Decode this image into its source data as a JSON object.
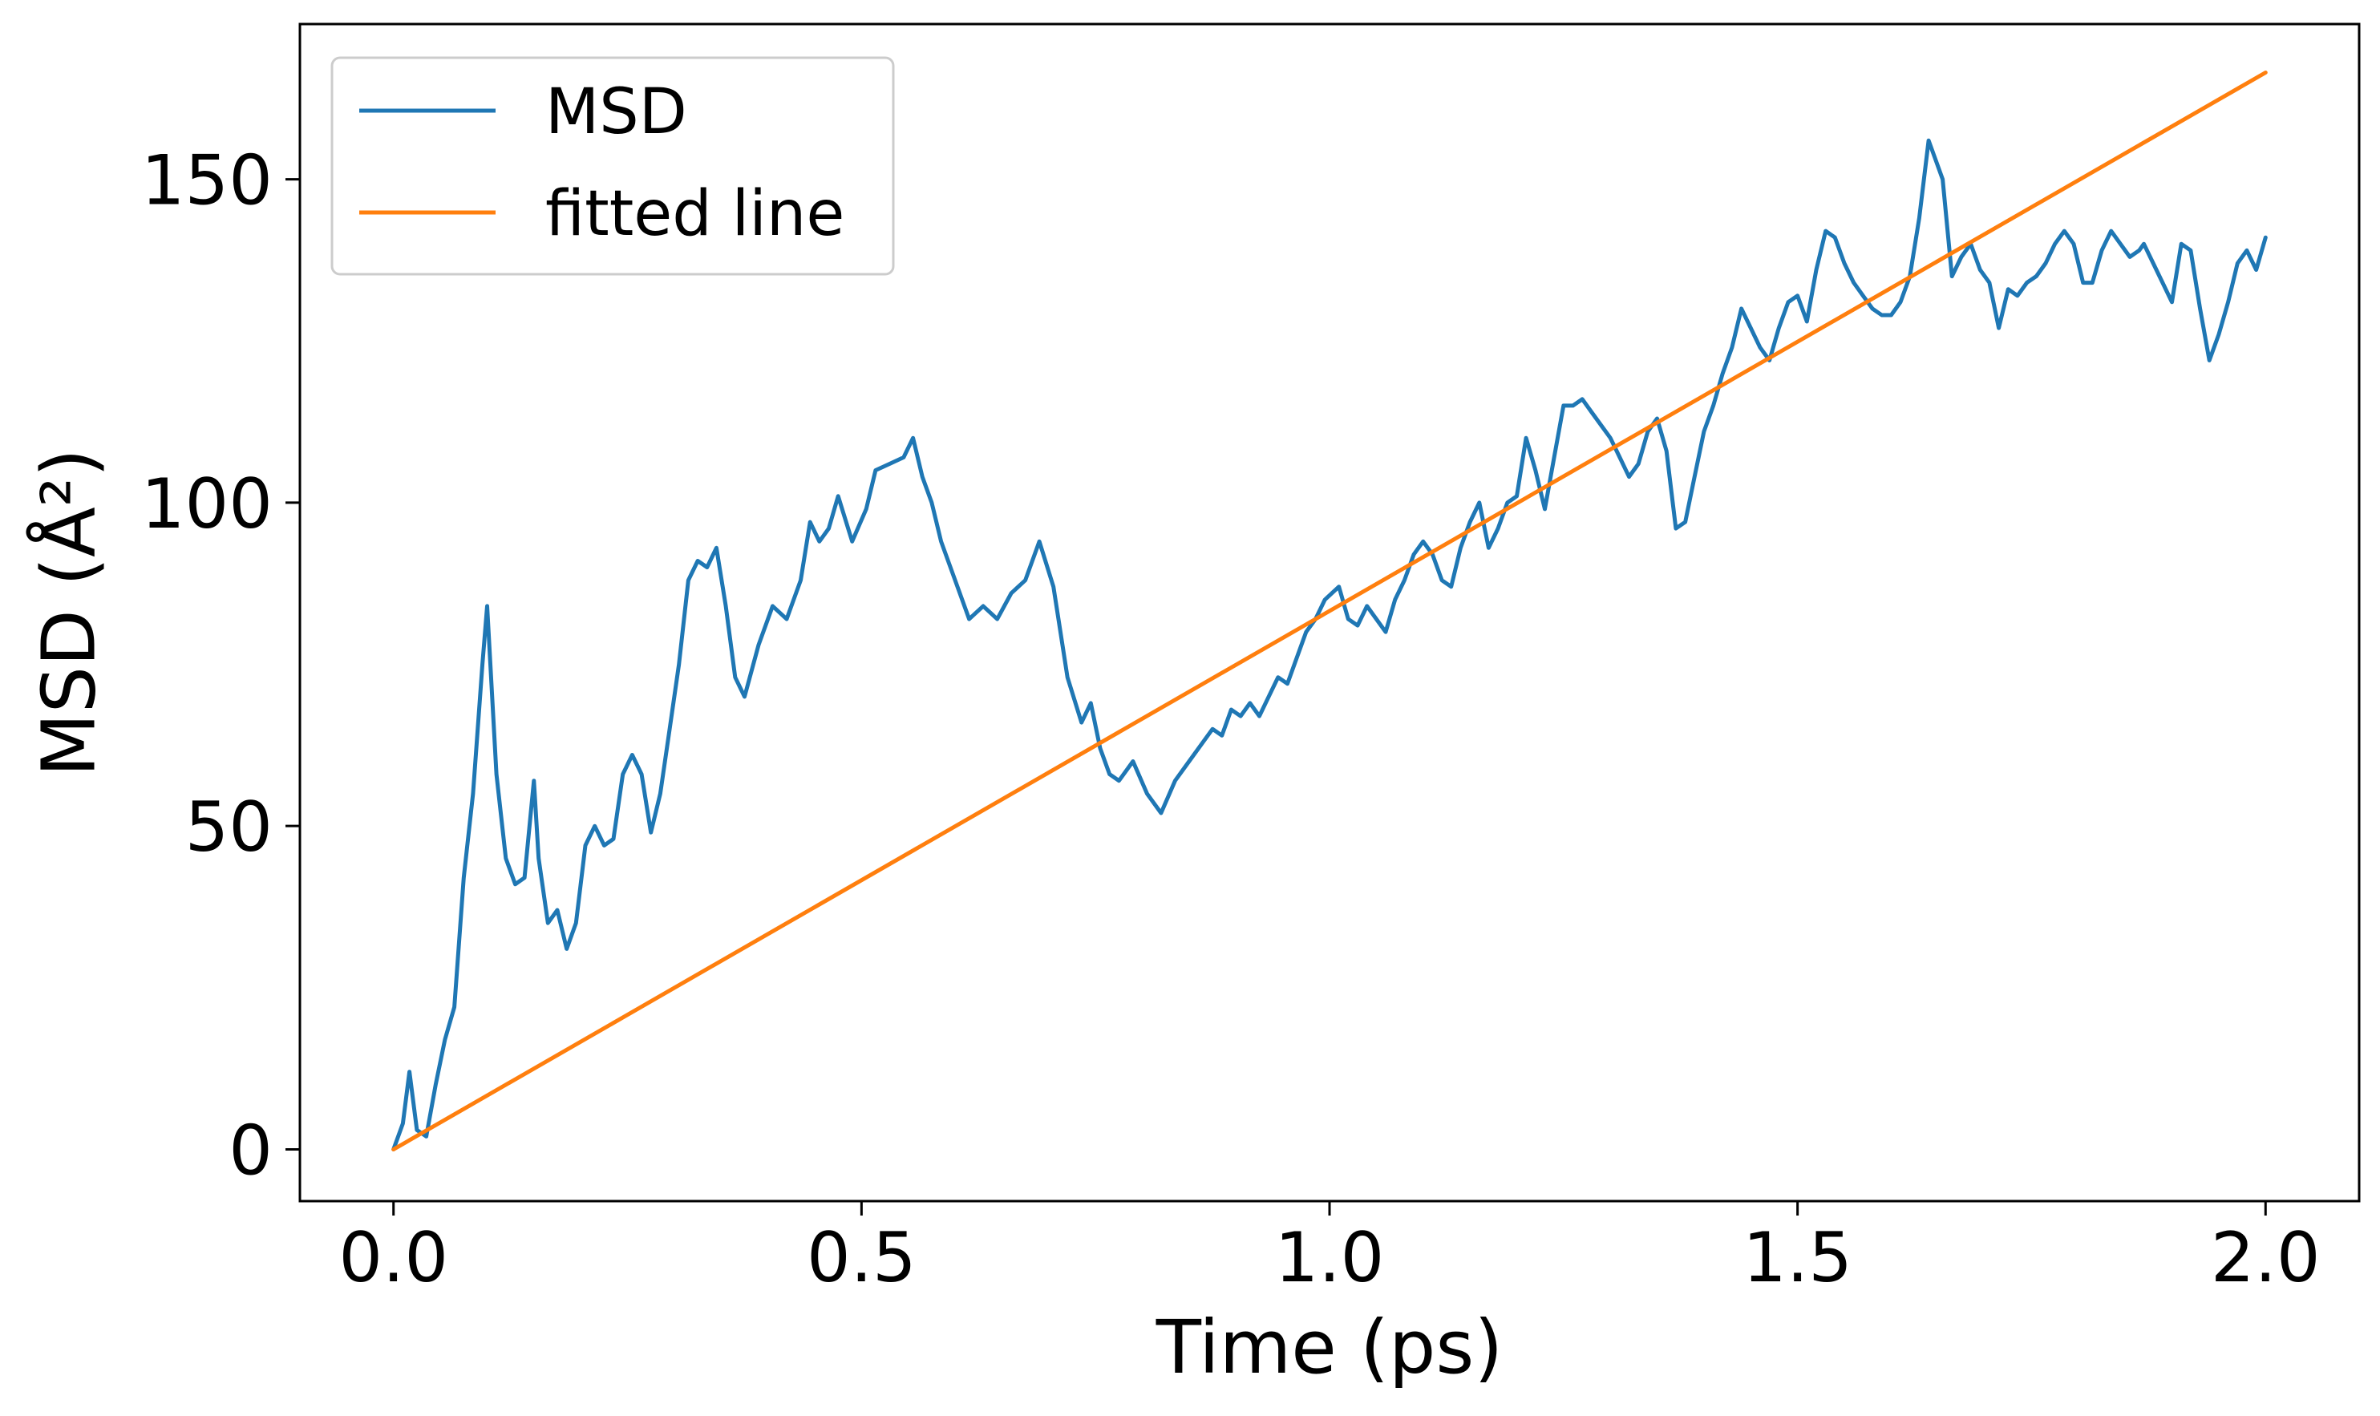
{
  "chart_data": {
    "type": "line",
    "title": "",
    "xlabel": "Time (ps)",
    "ylabel": "MSD (Å²)",
    "xlim": [
      -0.1,
      2.1
    ],
    "ylim": [
      -8,
      174
    ],
    "xticks": [
      0.0,
      0.5,
      1.0,
      1.5,
      2.0
    ],
    "xtick_labels": [
      "0.0",
      "0.5",
      "1.0",
      "1.5",
      "2.0"
    ],
    "yticks": [
      0,
      50,
      100,
      150
    ],
    "ytick_labels": [
      "0",
      "50",
      "100",
      "150"
    ],
    "grid": false,
    "legend_position": "upper-left",
    "series": [
      {
        "name": "MSD",
        "color": "#1f77b4",
        "x": [
          0.0,
          0.01,
          0.017,
          0.025,
          0.035,
          0.045,
          0.055,
          0.065,
          0.075,
          0.085,
          0.095,
          0.1,
          0.11,
          0.12,
          0.13,
          0.14,
          0.15,
          0.155,
          0.165,
          0.175,
          0.185,
          0.195,
          0.205,
          0.215,
          0.225,
          0.235,
          0.245,
          0.255,
          0.265,
          0.275,
          0.285,
          0.295,
          0.305,
          0.315,
          0.325,
          0.335,
          0.345,
          0.355,
          0.365,
          0.375,
          0.39,
          0.405,
          0.42,
          0.435,
          0.445,
          0.455,
          0.465,
          0.475,
          0.49,
          0.505,
          0.515,
          0.53,
          0.545,
          0.555,
          0.565,
          0.575,
          0.585,
          0.6,
          0.615,
          0.63,
          0.645,
          0.66,
          0.675,
          0.69,
          0.705,
          0.72,
          0.735,
          0.745,
          0.755,
          0.765,
          0.775,
          0.79,
          0.805,
          0.82,
          0.835,
          0.85,
          0.865,
          0.875,
          0.885,
          0.895,
          0.905,
          0.915,
          0.925,
          0.935,
          0.945,
          0.955,
          0.965,
          0.975,
          0.985,
          0.995,
          1.01,
          1.02,
          1.03,
          1.04,
          1.05,
          1.06,
          1.07,
          1.08,
          1.09,
          1.1,
          1.11,
          1.12,
          1.13,
          1.14,
          1.15,
          1.16,
          1.17,
          1.18,
          1.19,
          1.2,
          1.21,
          1.22,
          1.23,
          1.24,
          1.25,
          1.26,
          1.27,
          1.28,
          1.29,
          1.3,
          1.31,
          1.32,
          1.33,
          1.34,
          1.35,
          1.36,
          1.37,
          1.38,
          1.39,
          1.4,
          1.41,
          1.42,
          1.43,
          1.44,
          1.45,
          1.46,
          1.47,
          1.48,
          1.49,
          1.5,
          1.51,
          1.52,
          1.53,
          1.54,
          1.55,
          1.56,
          1.57,
          1.58,
          1.59,
          1.6,
          1.61,
          1.62,
          1.63,
          1.64,
          1.655,
          1.665,
          1.675,
          1.685,
          1.695,
          1.705,
          1.715,
          1.725,
          1.735,
          1.745,
          1.755,
          1.765,
          1.775,
          1.785,
          1.795,
          1.805,
          1.815,
          1.825,
          1.835,
          1.845,
          1.855,
          1.865,
          1.87,
          1.88,
          1.89,
          1.9,
          1.91,
          1.92,
          1.93,
          1.94,
          1.95,
          1.96,
          1.97,
          1.98,
          1.99,
          2.0
        ],
        "y": [
          0,
          4,
          12,
          3,
          2,
          10,
          17,
          22,
          42,
          55,
          75,
          84,
          58,
          45,
          41,
          42,
          57,
          45,
          35,
          37,
          31,
          35,
          47,
          50,
          47,
          48,
          58,
          61,
          58,
          49,
          55,
          65,
          75,
          88,
          91,
          90,
          93,
          84,
          73,
          70,
          78,
          84,
          82,
          88,
          97,
          94,
          96,
          101,
          94,
          99,
          105,
          106,
          107,
          110,
          104,
          100,
          94,
          88,
          82,
          84,
          82,
          86,
          88,
          94,
          87,
          73,
          66,
          69,
          62,
          58,
          57,
          60,
          55,
          52,
          57,
          60,
          63,
          65,
          64,
          68,
          67,
          69,
          67,
          70,
          73,
          72,
          76,
          80,
          82,
          85,
          87,
          82,
          81,
          84,
          82,
          80,
          85,
          88,
          92,
          94,
          92,
          88,
          87,
          93,
          97,
          100,
          93,
          96,
          100,
          101,
          110,
          105,
          99,
          107,
          115,
          115,
          116,
          114,
          112,
          110,
          107,
          104,
          106,
          111,
          113,
          108,
          96,
          97,
          104,
          111,
          115,
          120,
          124,
          130,
          127,
          124,
          122,
          127,
          131,
          132,
          128,
          136,
          142,
          141,
          137,
          134,
          132,
          130,
          129,
          129,
          131,
          135,
          144,
          156,
          150,
          135,
          138,
          140,
          136,
          134,
          127,
          133,
          132,
          134,
          135,
          137,
          140,
          142,
          140,
          134,
          134,
          139,
          142,
          140,
          138,
          139,
          140,
          137,
          134,
          131,
          140,
          139,
          130,
          122,
          126,
          131,
          137,
          139,
          136,
          141
        ]
      },
      {
        "name": "fitted line",
        "color": "#ff7f0e",
        "x": [
          0.0,
          2.0
        ],
        "y": [
          0,
          166.5
        ]
      }
    ]
  }
}
